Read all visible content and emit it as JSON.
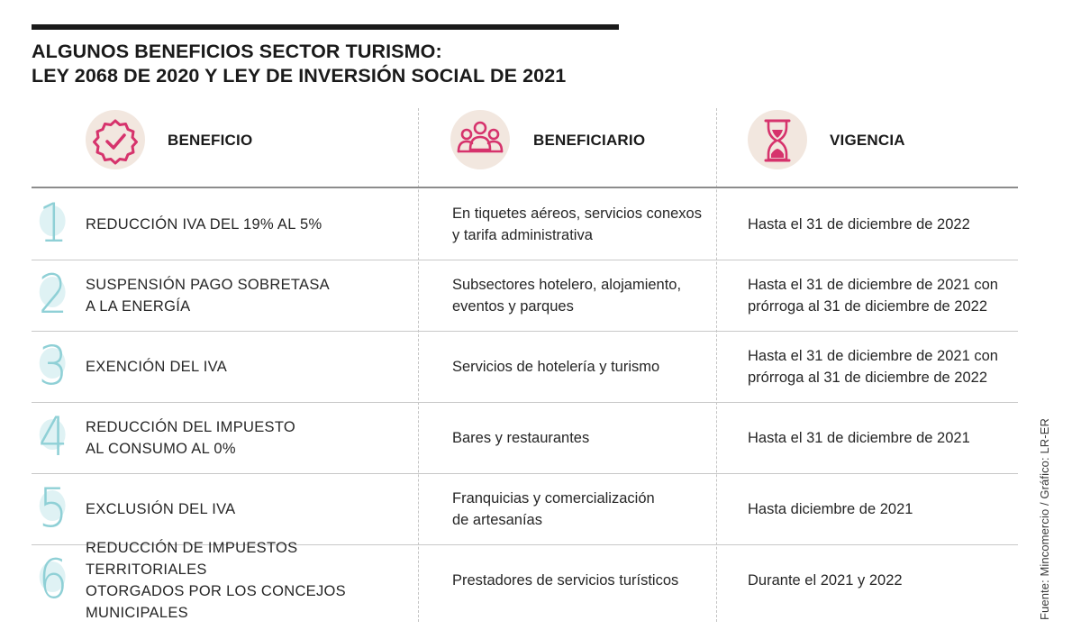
{
  "title": {
    "line1": "ALGUNOS BENEFICIOS SECTOR TURISMO:",
    "line2": "LEY 2068 DE 2020 Y LEY DE INVERSIÓN SOCIAL DE 2021"
  },
  "columns": {
    "beneficio": "BENEFICIO",
    "beneficiario": "BENEFICIARIO",
    "vigencia": "VIGENCIA"
  },
  "icons": {
    "beneficio": "check-badge-icon",
    "beneficiario": "people-group-icon",
    "vigencia": "hourglass-icon",
    "accent_color": "#d6336c"
  },
  "rows": [
    {
      "number": "1",
      "beneficio": "REDUCCIÓN IVA DEL 19% AL 5%",
      "beneficiario": "En tiquetes aéreos, servicios conexos\ny tarifa administrativa",
      "vigencia": "Hasta el 31 de diciembre de 2022"
    },
    {
      "number": "2",
      "beneficio": "SUSPENSIÓN PAGO SOBRETASA\nA LA ENERGÍA",
      "beneficiario": "Subsectores hotelero, alojamiento,\neventos y parques",
      "vigencia": " Hasta el 31 de diciembre de 2021 con\nprórroga al 31 de diciembre de 2022"
    },
    {
      "number": "3",
      "beneficio": "EXENCIÓN DEL IVA",
      "beneficiario": "Servicios de hotelería y turismo",
      "vigencia": "Hasta el 31 de diciembre de 2021 con\nprórroga al 31 de diciembre de 2022"
    },
    {
      "number": "4",
      "beneficio": "REDUCCIÓN DEL IMPUESTO\nAL CONSUMO AL 0%",
      "beneficiario": "Bares y restaurantes",
      "vigencia": "Hasta el 31 de diciembre de 2021"
    },
    {
      "number": "5",
      "beneficio": "EXCLUSIÓN DEL IVA",
      "beneficiario": "Franquicias y comercialización\nde artesanías",
      "vigencia": "Hasta diciembre de 2021"
    },
    {
      "number": "6",
      "beneficio": "REDUCCIÓN DE IMPUESTOS TERRITORIALES\nOTORGADOS POR LOS CONCEJOS MUNICIPALES",
      "beneficiario": "Prestadores de servicios turísticos",
      "vigencia": "Durante el 2021 y 2022"
    }
  ],
  "credit": "Fuente: Mincomercio / Gráfico: LR-ER"
}
